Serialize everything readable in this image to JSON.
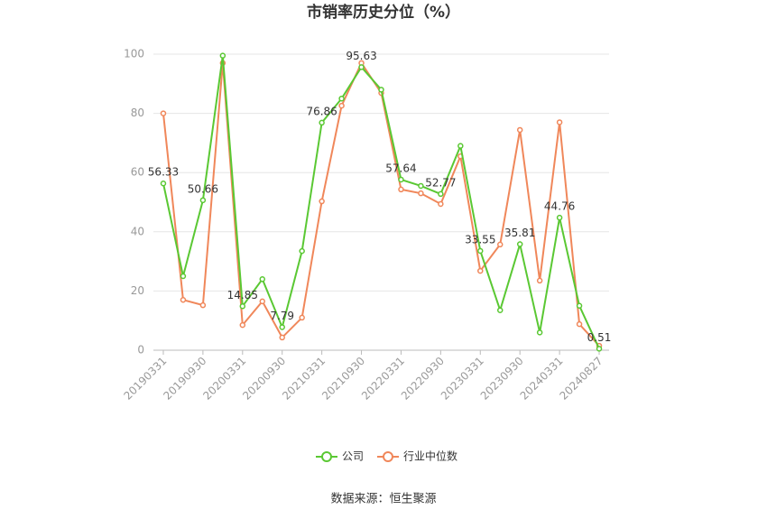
{
  "chart_data": {
    "type": "line",
    "title": "市销率历史分位（%）",
    "categories": [
      "20190331",
      null,
      "20190930",
      null,
      "20200331",
      null,
      "20200930",
      null,
      "20210331",
      null,
      "20210930",
      null,
      "20220331",
      null,
      "20220930",
      null,
      "20230331",
      null,
      "20230930",
      null,
      "20240331",
      null,
      "20240827"
    ],
    "series": [
      {
        "name": "公司",
        "color": "#5ac833",
        "values": [
          56.33,
          25,
          50.66,
          99.5,
          14.85,
          24,
          7.79,
          33.5,
          76.86,
          85,
          95.63,
          88,
          57.64,
          55.5,
          52.77,
          69,
          33.55,
          13.5,
          35.81,
          6,
          44.76,
          15,
          0.51
        ]
      },
      {
        "name": "行业中位数",
        "color": "#f0875a",
        "values": [
          80,
          17,
          15.2,
          97,
          8.5,
          16.5,
          4.3,
          11,
          50.3,
          82.6,
          97,
          86.9,
          54.3,
          53,
          49.4,
          65.5,
          26.8,
          35.7,
          74.4,
          23.5,
          77,
          8.8,
          1.5
        ]
      }
    ],
    "ylim": [
      0,
      100
    ],
    "yticks": [
      0,
      20,
      40,
      60,
      80,
      100
    ],
    "grid": true,
    "source": "数据来源：恒生聚源"
  }
}
